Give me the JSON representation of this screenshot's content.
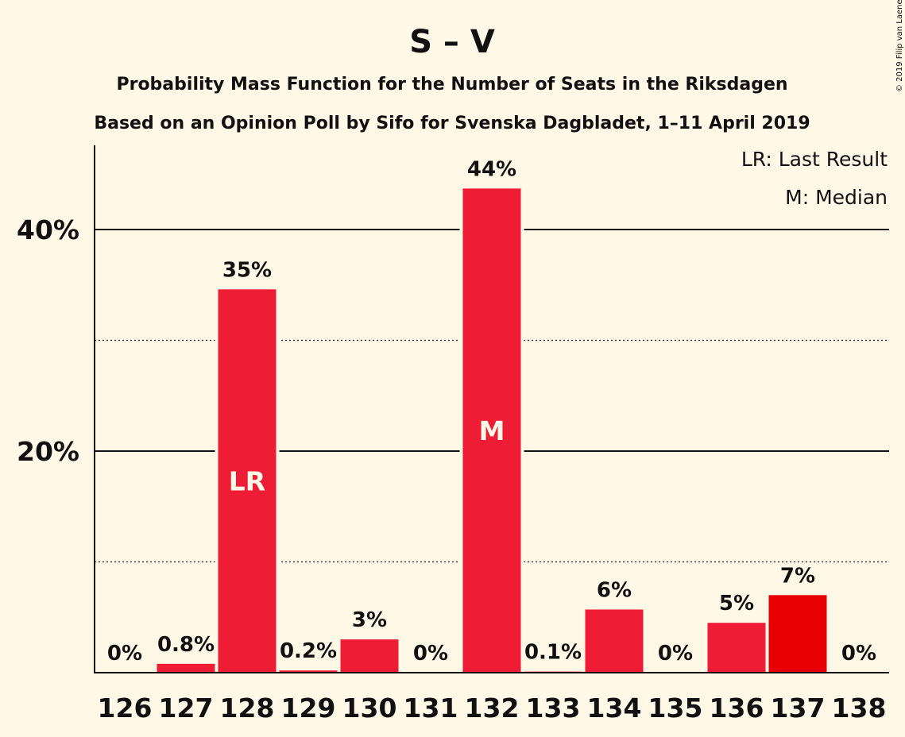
{
  "copyright": "© 2019 Filip van Laenen",
  "chart_data": {
    "type": "bar",
    "title": "S – V",
    "subtitle": "Probability Mass Function for the Number of Seats in the Riksdagen",
    "subtitle2": "Based on an Opinion Poll by Sifo for Svenska Dagbladet, 1–11 April 2019",
    "legend": [
      "LR: Last Result",
      "M: Median"
    ],
    "legend_placement": "top-right",
    "ylim": [
      0,
      47
    ],
    "yticks": [
      {
        "value": 20,
        "label": "20%"
      },
      {
        "value": 40,
        "label": "40%"
      }
    ],
    "minor_gridlines": [
      10,
      30
    ],
    "categories": [
      "126",
      "127",
      "128",
      "129",
      "130",
      "131",
      "132",
      "133",
      "134",
      "135",
      "136",
      "137",
      "138"
    ],
    "values": [
      0,
      0.8,
      34.6,
      0.2,
      3.0,
      0,
      43.7,
      0.1,
      5.7,
      0,
      4.5,
      7.0,
      0
    ],
    "value_labels": [
      "0%",
      "0.8%",
      "35%",
      "0.2%",
      "3%",
      "0%",
      "44%",
      "0.1%",
      "6%",
      "0%",
      "5%",
      "7%",
      "0%"
    ],
    "bar_markers": [
      {
        "category": "128",
        "text": "LR"
      },
      {
        "category": "132",
        "text": "M"
      }
    ],
    "colors": {
      "bar": "#ef1c36",
      "bar_highlight": "#e60000",
      "highlight_category": "137",
      "marker_text": "#fff8e6",
      "background": "#fff8e6",
      "grid": "#111111"
    }
  }
}
